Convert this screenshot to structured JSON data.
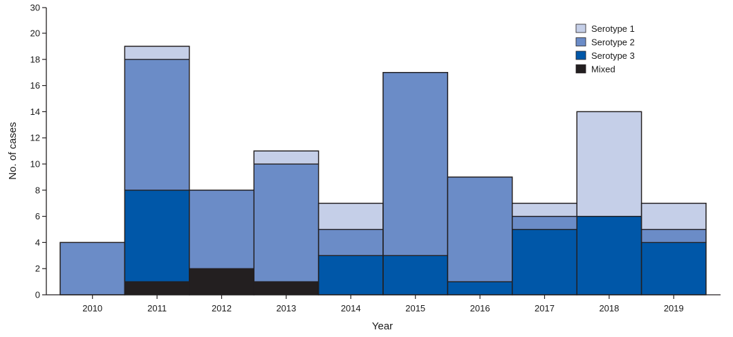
{
  "chart_data": {
    "type": "bar",
    "stacked": true,
    "title": "",
    "xlabel": "Year",
    "ylabel": "No. of cases",
    "ylim": [
      0,
      30
    ],
    "yticks": [
      0,
      2,
      4,
      6,
      8,
      10,
      12,
      14,
      16,
      18,
      20,
      30
    ],
    "categories": [
      "2010",
      "2011",
      "2012",
      "2013",
      "2014",
      "2015",
      "2016",
      "2017",
      "2018",
      "2019"
    ],
    "series": [
      {
        "name": "Mixed",
        "color": "#231f20",
        "values": [
          0,
          1,
          2,
          1,
          0,
          0,
          0,
          0,
          0,
          0
        ]
      },
      {
        "name": "Serotype 3",
        "color": "#0057a8",
        "values": [
          0,
          7,
          0,
          0,
          3,
          3,
          1,
          5,
          6,
          4
        ]
      },
      {
        "name": "Serotype 2",
        "color": "#6b8cc7",
        "values": [
          4,
          10,
          6,
          9,
          2,
          14,
          8,
          1,
          0,
          1
        ]
      },
      {
        "name": "Serotype 1",
        "color": "#c5cfe8",
        "values": [
          0,
          1,
          0,
          1,
          2,
          0,
          0,
          1,
          8,
          2
        ]
      }
    ],
    "legend": {
      "position": "top-right",
      "entries": [
        {
          "label": "Serotype 1",
          "color": "#c5cfe8"
        },
        {
          "label": "Serotype 2",
          "color": "#6b8cc7"
        },
        {
          "label": "Serotype 3",
          "color": "#0057a8"
        },
        {
          "label": "Mixed",
          "color": "#231f20"
        }
      ]
    },
    "grid": false
  }
}
